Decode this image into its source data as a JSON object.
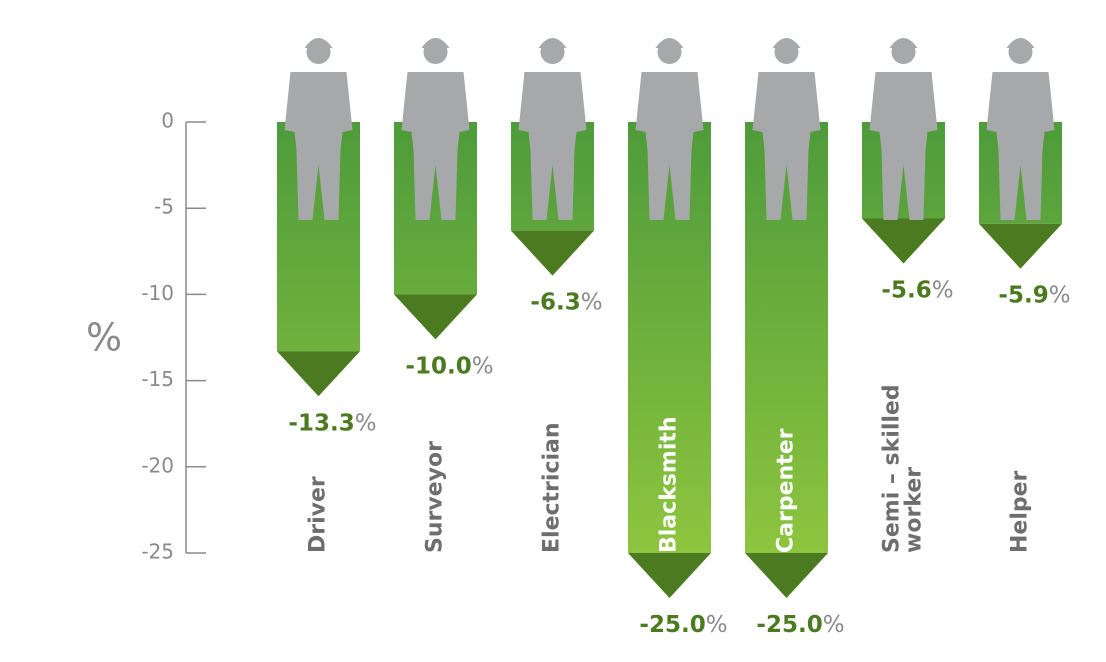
{
  "chart_data": {
    "type": "bar",
    "categories": [
      "Driver",
      "Surveyor",
      "Electrician",
      "Blacksmith",
      "Carpenter",
      "Semi – skilled\nworker",
      "Helper"
    ],
    "values": [
      -13.3,
      -10.0,
      -6.3,
      -25.0,
      -25.0,
      -5.6,
      -5.9
    ],
    "value_labels": [
      "-13.3",
      "-10.0",
      "-6.3",
      "-25.0",
      "-25.0",
      "-5.6",
      "-5.9"
    ],
    "value_unit": "%",
    "y_label": "%",
    "ylim": [
      -25,
      0
    ],
    "yticks": [
      0,
      -5,
      -10,
      -15,
      -20,
      -25
    ],
    "color": "#5aa543"
  }
}
